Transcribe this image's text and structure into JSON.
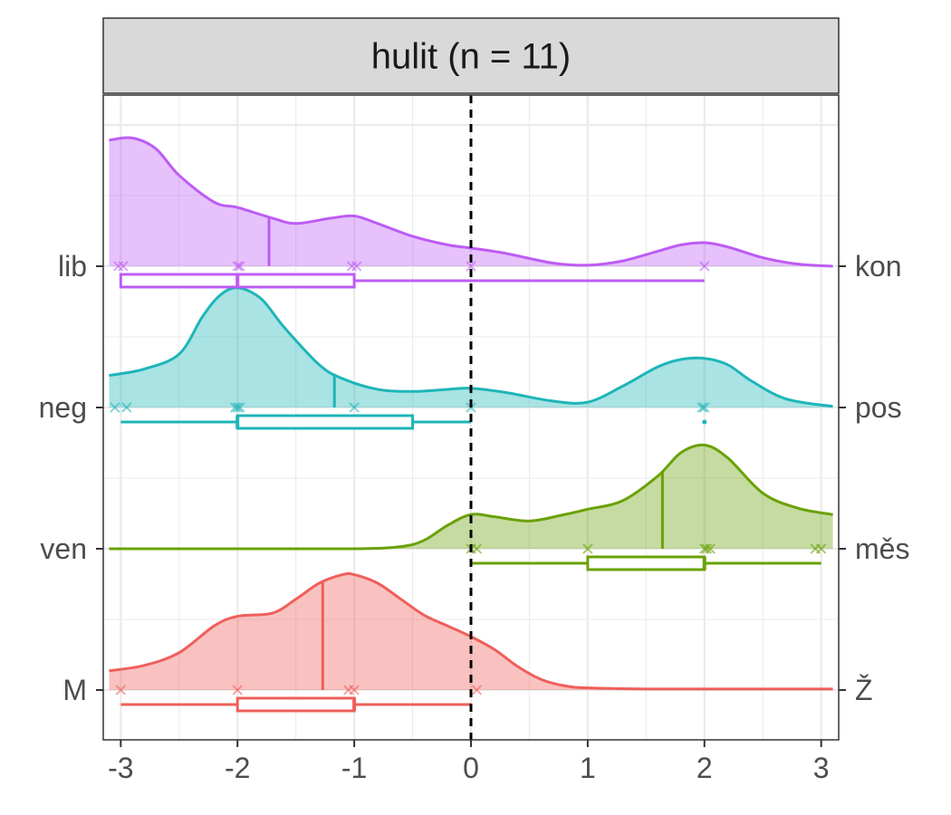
{
  "chart_data": {
    "type": "ridgeline",
    "title": "hulit (n = 11)",
    "xlabel": "",
    "ylabel": "",
    "xlim": [
      -3.15,
      3.15
    ],
    "x_ticks": [
      "-3",
      "-2",
      "-1",
      "0",
      "1",
      "2",
      "3"
    ],
    "x_tick_values": [
      -3,
      -2,
      -1,
      0,
      1,
      2,
      3
    ],
    "reference_line": 0,
    "grid": true,
    "series": [
      {
        "left_label": "M",
        "right_label": "Ž",
        "color": "#ef5f5a",
        "points": [
          -3.0,
          -2.0,
          -1.05,
          -1.0,
          0.05
        ],
        "mean": -1.27,
        "box": {
          "min": -3.0,
          "q1": -2.0,
          "median": -1.0,
          "q3": -1.0,
          "max": 0.0
        },
        "density": [
          [
            -3.1,
            0.18
          ],
          [
            -2.8,
            0.23
          ],
          [
            -2.5,
            0.35
          ],
          [
            -2.2,
            0.6
          ],
          [
            -2.0,
            0.69
          ],
          [
            -1.7,
            0.72
          ],
          [
            -1.5,
            0.85
          ],
          [
            -1.3,
            1.0
          ],
          [
            -1.1,
            1.08
          ],
          [
            -1.0,
            1.08
          ],
          [
            -0.8,
            1.0
          ],
          [
            -0.6,
            0.85
          ],
          [
            -0.4,
            0.7
          ],
          [
            -0.2,
            0.6
          ],
          [
            0.0,
            0.5
          ],
          [
            0.2,
            0.38
          ],
          [
            0.4,
            0.22
          ],
          [
            0.6,
            0.1
          ],
          [
            0.8,
            0.04
          ],
          [
            1.0,
            0.02
          ],
          [
            1.5,
            0.01
          ],
          [
            2.0,
            0.01
          ],
          [
            3.1,
            0.01
          ]
        ]
      },
      {
        "left_label": "ven",
        "right_label": "měs",
        "color": "#6aa107",
        "points": [
          0.0,
          0.05,
          1.0,
          2.0,
          2.02,
          2.05,
          2.95,
          3.0
        ],
        "mean": 1.64,
        "box": {
          "min": 0.0,
          "q1": 1.0,
          "median": 2.0,
          "q3": 2.0,
          "max": 3.0
        },
        "outliers": [],
        "density": [
          [
            -3.1,
            0.0
          ],
          [
            -2.0,
            0.0
          ],
          [
            -1.0,
            0.0
          ],
          [
            -0.6,
            0.02
          ],
          [
            -0.4,
            0.08
          ],
          [
            -0.2,
            0.22
          ],
          [
            0.0,
            0.32
          ],
          [
            0.2,
            0.3
          ],
          [
            0.5,
            0.26
          ],
          [
            0.8,
            0.32
          ],
          [
            1.0,
            0.37
          ],
          [
            1.3,
            0.45
          ],
          [
            1.6,
            0.68
          ],
          [
            1.8,
            0.9
          ],
          [
            2.0,
            0.97
          ],
          [
            2.2,
            0.85
          ],
          [
            2.5,
            0.52
          ],
          [
            2.8,
            0.38
          ],
          [
            3.1,
            0.32
          ]
        ]
      },
      {
        "left_label": "neg",
        "right_label": "pos",
        "color": "#1eb5b8",
        "points": [
          -3.05,
          -2.95,
          -2.02,
          -2.0,
          -1.98,
          -1.0,
          0.0,
          1.98,
          2.0
        ],
        "mean": -1.17,
        "box": {
          "min": -3.0,
          "q1": -2.0,
          "median": -2.0,
          "q3": -0.5,
          "max": 0.0
        },
        "outliers": [
          2.0
        ],
        "density": [
          [
            -3.1,
            0.3
          ],
          [
            -2.8,
            0.36
          ],
          [
            -2.5,
            0.5
          ],
          [
            -2.3,
            0.85
          ],
          [
            -2.15,
            1.05
          ],
          [
            -2.0,
            1.12
          ],
          [
            -1.8,
            1.02
          ],
          [
            -1.6,
            0.75
          ],
          [
            -1.3,
            0.4
          ],
          [
            -1.1,
            0.27
          ],
          [
            -0.8,
            0.17
          ],
          [
            -0.5,
            0.15
          ],
          [
            -0.2,
            0.17
          ],
          [
            0.0,
            0.18
          ],
          [
            0.3,
            0.14
          ],
          [
            0.7,
            0.06
          ],
          [
            1.0,
            0.05
          ],
          [
            1.3,
            0.2
          ],
          [
            1.6,
            0.38
          ],
          [
            1.8,
            0.45
          ],
          [
            2.0,
            0.46
          ],
          [
            2.2,
            0.4
          ],
          [
            2.4,
            0.25
          ],
          [
            2.7,
            0.08
          ],
          [
            3.1,
            0.01
          ]
        ]
      },
      {
        "left_label": "lib",
        "right_label": "kon",
        "color": "#bd5cf4",
        "points": [
          -3.02,
          -2.98,
          -2.0,
          -1.98,
          -1.02,
          -0.98,
          0.0,
          2.0
        ],
        "mean": -1.73,
        "box": {
          "min": -3.0,
          "q1": -3.0,
          "median": -2.0,
          "q3": -1.0,
          "max": 2.0
        },
        "outliers": [],
        "density": [
          [
            -3.1,
            1.18
          ],
          [
            -2.9,
            1.2
          ],
          [
            -2.7,
            1.1
          ],
          [
            -2.5,
            0.85
          ],
          [
            -2.2,
            0.6
          ],
          [
            -2.0,
            0.55
          ],
          [
            -1.7,
            0.45
          ],
          [
            -1.5,
            0.4
          ],
          [
            -1.2,
            0.45
          ],
          [
            -1.0,
            0.47
          ],
          [
            -0.8,
            0.4
          ],
          [
            -0.5,
            0.28
          ],
          [
            -0.2,
            0.2
          ],
          [
            0.0,
            0.17
          ],
          [
            0.3,
            0.12
          ],
          [
            0.7,
            0.03
          ],
          [
            1.0,
            0.01
          ],
          [
            1.3,
            0.05
          ],
          [
            1.6,
            0.14
          ],
          [
            1.8,
            0.2
          ],
          [
            2.0,
            0.22
          ],
          [
            2.2,
            0.18
          ],
          [
            2.5,
            0.08
          ],
          [
            2.8,
            0.02
          ],
          [
            3.1,
            0.0
          ]
        ]
      }
    ]
  }
}
